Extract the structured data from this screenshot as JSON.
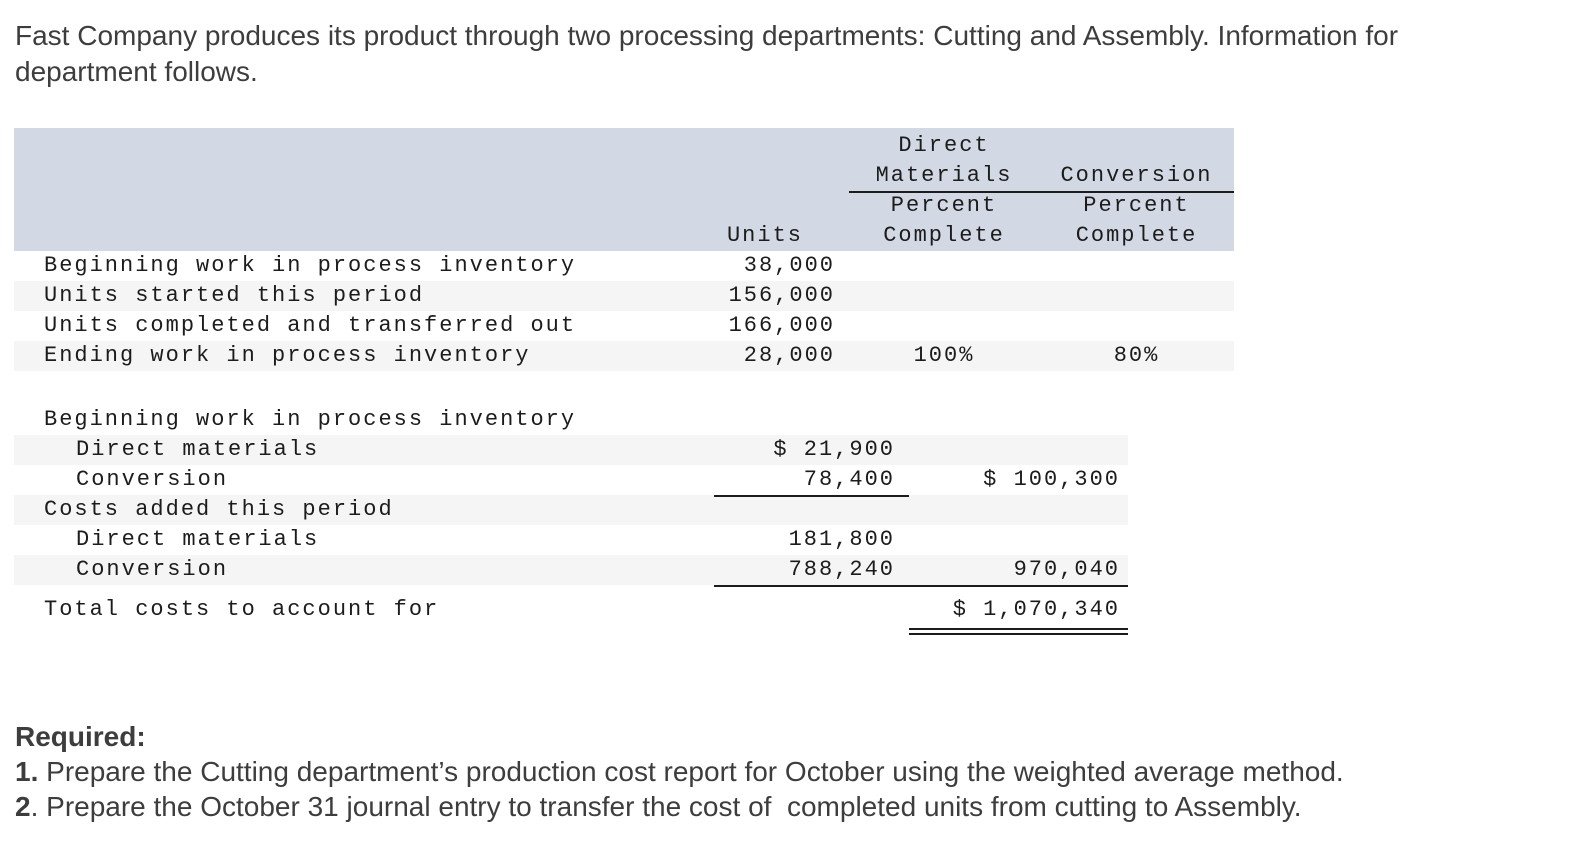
{
  "intro": {
    "line1": "Fast Company produces its product through two processing departments: Cutting and Assembly. Information for",
    "line2": "department follows."
  },
  "units_table": {
    "header": {
      "direct": "Direct",
      "materials": "Materials",
      "conversion": "Conversion",
      "percent": "Percent",
      "complete": "Complete",
      "units": "Units"
    },
    "rows": [
      {
        "label": "Beginning work in process inventory",
        "units": "38,000",
        "dm_pct": "",
        "conv_pct": ""
      },
      {
        "label": "Units started this period",
        "units": "156,000",
        "dm_pct": "",
        "conv_pct": ""
      },
      {
        "label": "Units completed and transferred out",
        "units": "166,000",
        "dm_pct": "",
        "conv_pct": ""
      },
      {
        "label": "Ending work in process inventory",
        "units": "28,000",
        "dm_pct": "100%",
        "conv_pct": "80%"
      }
    ]
  },
  "costs_table": {
    "rows": [
      {
        "label": "Beginning work in process inventory",
        "amount1": "",
        "amount2": ""
      },
      {
        "label": "Direct materials",
        "amount1": "$ 21,900",
        "amount2": ""
      },
      {
        "label": "Conversion",
        "amount1": "78,400",
        "amount2": "$ 100,300"
      },
      {
        "label": "Costs added this period",
        "amount1": "",
        "amount2": ""
      },
      {
        "label": "Direct materials",
        "amount1": "181,800",
        "amount2": ""
      },
      {
        "label": "Conversion",
        "amount1": "788,240",
        "amount2": "970,040"
      },
      {
        "label": "Total costs to account for",
        "amount1": "",
        "amount2": "$ 1,070,340"
      }
    ]
  },
  "required": {
    "heading": "Required:",
    "items": [
      {
        "prefix": "1.",
        "text": " Prepare the Cutting department’s production cost report for October using the weighted average method."
      },
      {
        "prefix": "2",
        "text": ". Prepare the October 31 journal entry to transfer the cost of  completed units from cutting to Assembly."
      }
    ]
  },
  "colors": {
    "table_header_bg": "#d3d9e4",
    "row_stripe_bg": "#f5f5f5",
    "rule_color": "#1c1c1c",
    "body_text": "#3d3d3d",
    "table_text": "#1c1c1c"
  }
}
